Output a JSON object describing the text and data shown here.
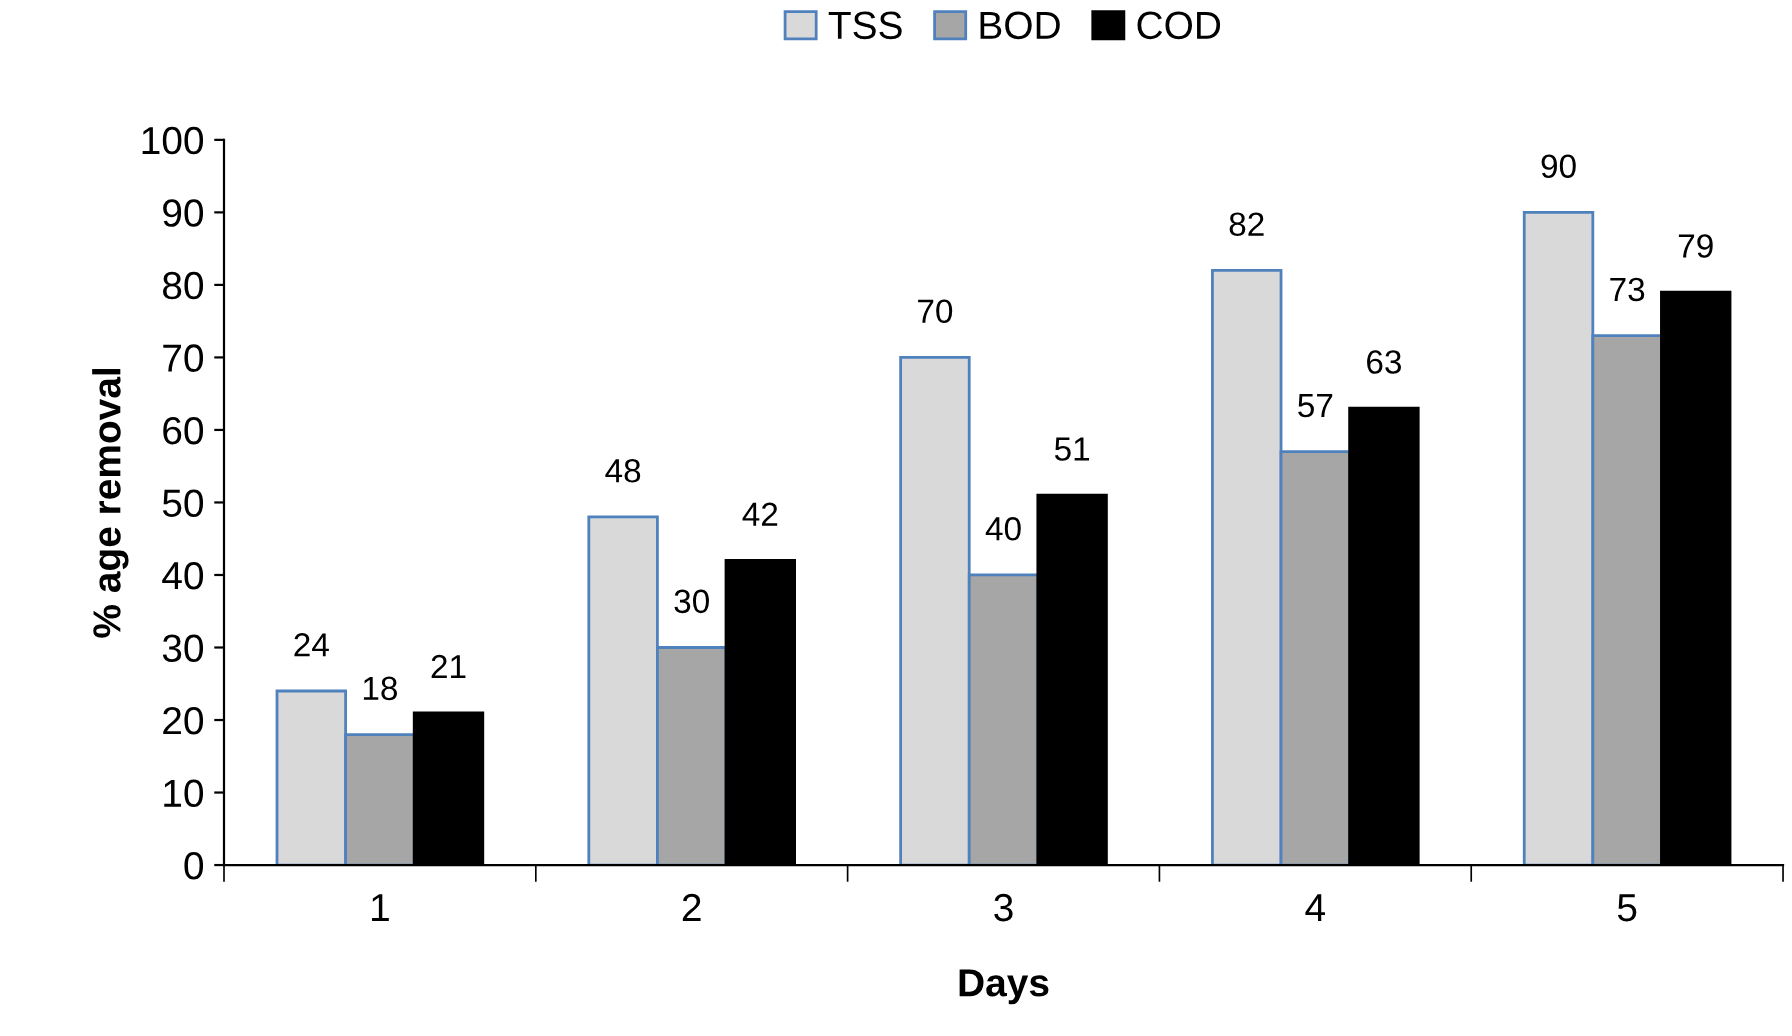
{
  "chart_data": {
    "type": "bar",
    "xlabel": "Days",
    "ylabel": "% age removal",
    "categories": [
      "1",
      "2",
      "3",
      "4",
      "5"
    ],
    "series": [
      {
        "name": "TSS",
        "color": "#d9d9d9",
        "values": [
          24,
          48,
          70,
          82,
          90
        ]
      },
      {
        "name": "BOD",
        "color": "#a6a6a6",
        "values": [
          18,
          30,
          40,
          57,
          73
        ]
      },
      {
        "name": "COD",
        "color": "#000000",
        "values": [
          21,
          42,
          51,
          63,
          79
        ]
      }
    ],
    "ylim": [
      0,
      100
    ],
    "yticks": [
      0,
      10,
      20,
      30,
      40,
      50,
      60,
      70,
      80,
      90,
      100
    ],
    "grid": false,
    "legend": "top",
    "data_labels": true
  }
}
